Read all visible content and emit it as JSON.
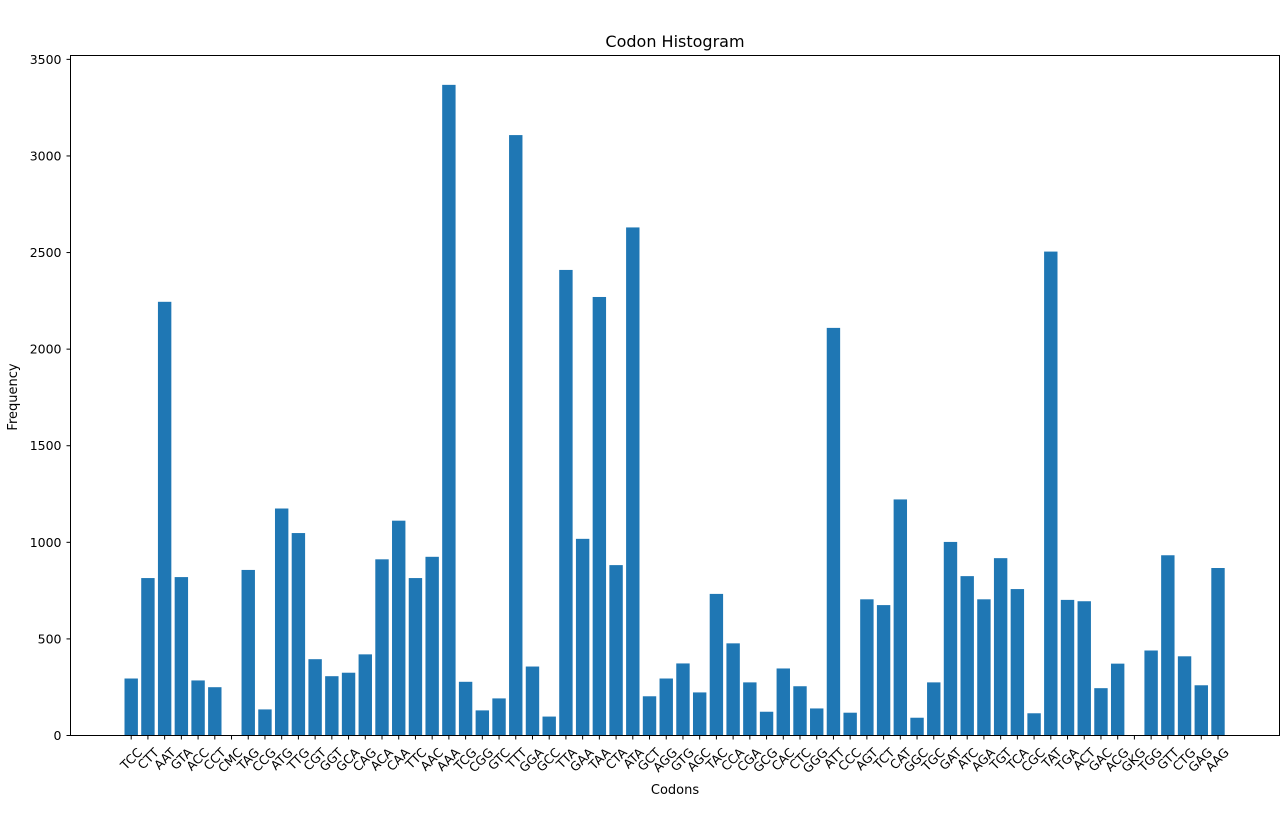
{
  "chart_data": {
    "type": "bar",
    "title": "Codon Histogram",
    "xlabel": "Codons",
    "ylabel": "Frequency",
    "ylim": [
      0,
      3520
    ],
    "yticks": [
      0,
      500,
      1000,
      1500,
      2000,
      2500,
      3000,
      3500
    ],
    "grid": false,
    "bar_color": "#1f77b4",
    "categories": [
      "TCC",
      "CTT",
      "AAT",
      "GTA",
      "ACC",
      "CCT",
      "CMC",
      "TAG",
      "CCG",
      "ATG",
      "TTG",
      "CGT",
      "GGT",
      "GCA",
      "CAG",
      "ACA",
      "CAA",
      "TTC",
      "AAC",
      "AAA",
      "TCG",
      "CGG",
      "GTC",
      "TTT",
      "GGA",
      "GCC",
      "TTA",
      "GAA",
      "TAA",
      "CTA",
      "ATA",
      "GCT",
      "AGG",
      "GTG",
      "AGC",
      "TAC",
      "CCA",
      "CGA",
      "GCG",
      "CAC",
      "CTC",
      "GGG",
      "ATT",
      "CCC",
      "AGT",
      "TCT",
      "CAT",
      "GGC",
      "TGC",
      "GAT",
      "ATC",
      "AGA",
      "TGT",
      "TCA",
      "CGC",
      "TAT",
      "TGA",
      "ACT",
      "GAC",
      "ACG",
      "GKG",
      "TGG",
      "GTT",
      "CTG",
      "GAG",
      "AAG"
    ],
    "values": [
      295,
      815,
      2245,
      820,
      285,
      250,
      1,
      857,
      135,
      1175,
      1048,
      395,
      307,
      325,
      420,
      912,
      1112,
      815,
      925,
      3368,
      278,
      130,
      192,
      3108,
      357,
      98,
      2410,
      1018,
      2270,
      882,
      2630,
      203,
      295,
      373,
      223,
      733,
      477,
      275,
      123,
      347,
      255,
      140,
      2110,
      118,
      705,
      675,
      1222,
      92,
      275,
      1002,
      825,
      705,
      918,
      758,
      115,
      2505,
      702,
      695,
      245,
      372,
      1,
      440,
      933,
      410,
      260,
      867
    ]
  }
}
